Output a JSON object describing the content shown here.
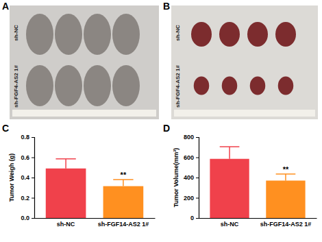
{
  "panels": {
    "labels": [
      "A",
      "B",
      "C",
      "D"
    ]
  },
  "photos": [
    {
      "labels": [
        "sh-NC",
        "sh-FGF4-AS2 1#"
      ]
    },
    {
      "labels": [
        "sh-NC",
        "sh-FGF4-AS2 1#"
      ]
    }
  ],
  "chart_data": [
    {
      "type": "bar",
      "y_label": "Tumor Weigh (g)",
      "categories": [
        "sh-NC",
        "sh-FGF14-AS2 1#"
      ],
      "values": [
        0.49,
        0.315
      ],
      "errors": [
        0.095,
        0.065
      ],
      "colors": [
        "#f0414b",
        "#ff9020"
      ],
      "ylim": [
        0,
        0.8
      ],
      "yticks": [
        {
          "value": 0,
          "label": "0.0"
        },
        {
          "value": 0.2,
          "label": "0.2"
        },
        {
          "value": 0.4,
          "label": "0.4"
        },
        {
          "value": 0.6,
          "label": "0.6"
        },
        {
          "value": 0.8,
          "label": "0.8"
        }
      ],
      "annotations": [
        {
          "text": "**",
          "x": "sh-FGF14-AS2 1#"
        }
      ]
    },
    {
      "type": "bar",
      "y_label": "Tumor Volume(mm³)",
      "categories": [
        "sh-NC",
        "sh-FGF14-AS2 1#"
      ],
      "values": [
        585,
        370
      ],
      "errors": [
        120,
        65
      ],
      "colors": [
        "#f0414b",
        "#ff9020"
      ],
      "ylim": [
        0,
        800
      ],
      "yticks": [
        0,
        200,
        400,
        600,
        800
      ],
      "annotations": [
        {
          "text": "**",
          "x": "sh-FGF14-AS2 1#"
        }
      ]
    }
  ]
}
